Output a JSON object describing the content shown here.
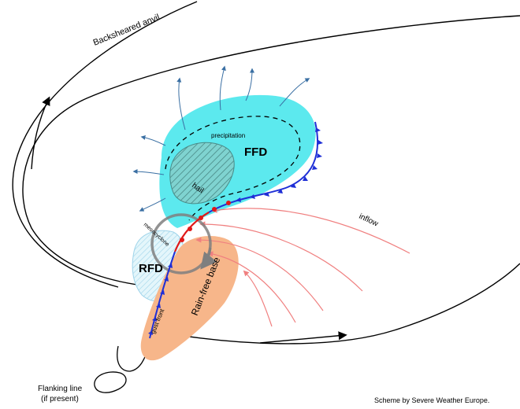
{
  "labels": {
    "backsheared_anvil": "Backsheared anvil",
    "precipitation": "precipitation",
    "ffd": "FFD",
    "hail": "hail",
    "mesocyclone": "mesocyclone",
    "rfd": "RFD",
    "rain_free_base": "Rain-free base",
    "gust_front": "gust front",
    "inflow": "inflow",
    "flanking_line_1": "Flanking line",
    "flanking_line_2": "(if present)",
    "credit": "Scheme by Severe Weather Europe."
  },
  "colors": {
    "ffd_fill": "#5ce9ee",
    "rfd_fill": "#d7f2f8",
    "rain_free_base": "#f7b68a",
    "inflow_arrows": "#f08080",
    "outflow_arrows": "#3a6fa3",
    "cold_front": "#1f2fd6",
    "warm_front": "#e01818",
    "mesocyclone": "#7f7f7f"
  }
}
